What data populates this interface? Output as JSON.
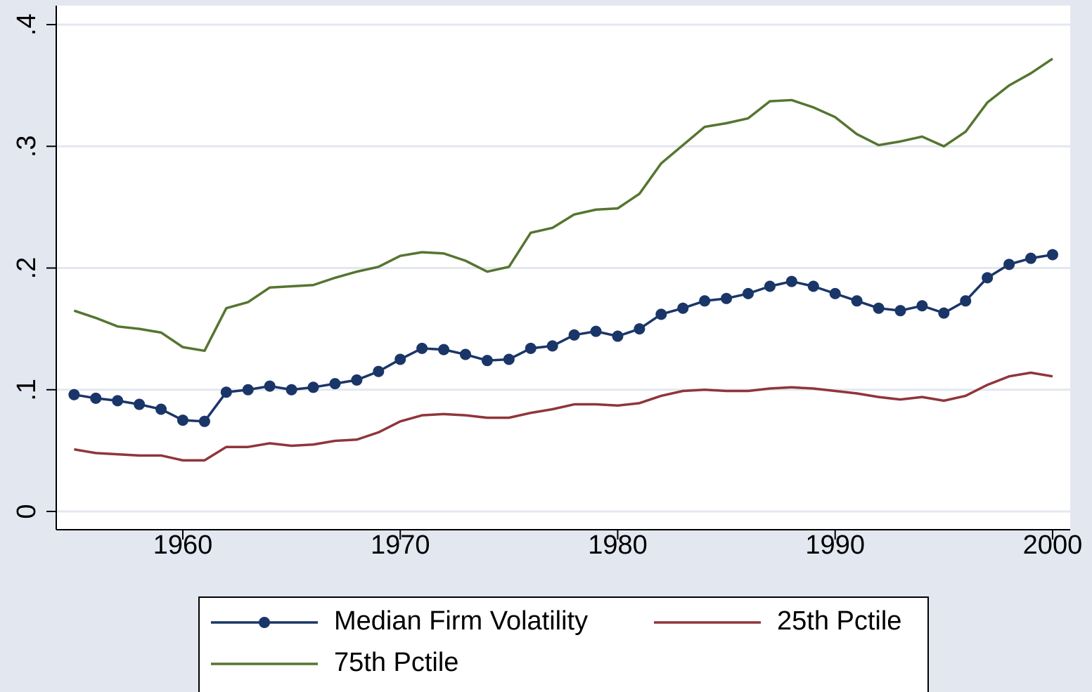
{
  "chart_data": {
    "type": "line",
    "x": [
      1955,
      1956,
      1957,
      1958,
      1959,
      1960,
      1961,
      1962,
      1963,
      1964,
      1965,
      1966,
      1967,
      1968,
      1969,
      1970,
      1971,
      1972,
      1973,
      1974,
      1975,
      1976,
      1977,
      1978,
      1979,
      1980,
      1981,
      1982,
      1983,
      1984,
      1985,
      1986,
      1987,
      1988,
      1989,
      1990,
      1991,
      1992,
      1993,
      1994,
      1995,
      1996,
      1997,
      1998,
      1999,
      2000
    ],
    "series": [
      {
        "name": "Median Firm Volatility",
        "color": "#1a3668",
        "marker": true,
        "values": [
          0.096,
          0.093,
          0.091,
          0.088,
          0.084,
          0.075,
          0.074,
          0.098,
          0.1,
          0.103,
          0.1,
          0.102,
          0.105,
          0.108,
          0.115,
          0.125,
          0.134,
          0.133,
          0.129,
          0.124,
          0.125,
          0.134,
          0.136,
          0.145,
          0.148,
          0.144,
          0.15,
          0.162,
          0.167,
          0.173,
          0.175,
          0.179,
          0.185,
          0.189,
          0.185,
          0.179,
          0.173,
          0.167,
          0.165,
          0.169,
          0.163,
          0.173,
          0.192,
          0.203,
          0.208,
          0.211
        ]
      },
      {
        "name": "25th Pctile",
        "color": "#90353b",
        "marker": false,
        "values": [
          0.051,
          0.048,
          0.047,
          0.046,
          0.046,
          0.042,
          0.042,
          0.053,
          0.053,
          0.056,
          0.054,
          0.055,
          0.058,
          0.059,
          0.065,
          0.074,
          0.079,
          0.08,
          0.079,
          0.077,
          0.077,
          0.081,
          0.084,
          0.088,
          0.088,
          0.087,
          0.089,
          0.095,
          0.099,
          0.1,
          0.099,
          0.099,
          0.101,
          0.102,
          0.101,
          0.099,
          0.097,
          0.094,
          0.092,
          0.094,
          0.091,
          0.095,
          0.104,
          0.111,
          0.114,
          0.111
        ]
      },
      {
        "name": "75th Pctile",
        "color": "#55752f",
        "marker": false,
        "values": [
          0.165,
          0.159,
          0.152,
          0.15,
          0.147,
          0.135,
          0.132,
          0.167,
          0.172,
          0.184,
          0.185,
          0.186,
          0.192,
          0.197,
          0.201,
          0.21,
          0.213,
          0.212,
          0.206,
          0.197,
          0.201,
          0.229,
          0.233,
          0.244,
          0.248,
          0.249,
          0.261,
          0.286,
          0.301,
          0.316,
          0.319,
          0.323,
          0.337,
          0.338,
          0.332,
          0.324,
          0.31,
          0.301,
          0.304,
          0.308,
          0.3,
          0.312,
          0.336,
          0.35,
          0.36,
          0.372
        ]
      }
    ],
    "xlim": [
      1954.18,
      2000.81
    ],
    "xticks": [
      1960,
      1970,
      1980,
      1990,
      2000
    ],
    "ylim": [
      -0.015,
      0.4156
    ],
    "yticks": [
      0,
      {
        "value": 0.1,
        "label": ".1"
      },
      {
        "value": 0.2,
        "label": ".2"
      },
      {
        "value": 0.3,
        "label": ".3"
      },
      {
        "value": 0.4,
        "label": ".4"
      }
    ],
    "grid": true
  }
}
